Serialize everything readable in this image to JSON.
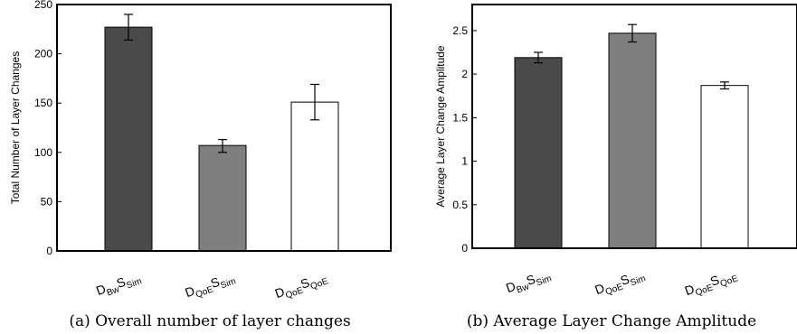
{
  "chart_data": [
    {
      "type": "bar",
      "caption": "(a) Overall number of layer changes",
      "ylabel": "Total Number of Layer Changes",
      "ylim": [
        0,
        250
      ],
      "yticks": [
        "0",
        "50",
        "100",
        "150",
        "200",
        "250"
      ],
      "categories": [
        {
          "base": "D",
          "sub1": "Bw",
          "mid": "S",
          "sub2": "Sim"
        },
        {
          "base": "D",
          "sub1": "QoE",
          "mid": "S",
          "sub2": "Sim"
        },
        {
          "base": "D",
          "sub1": "QoE",
          "mid": "S",
          "sub2": "QoE"
        }
      ],
      "values": [
        227,
        107,
        151
      ],
      "errors": [
        [
          214,
          240
        ],
        [
          100,
          113
        ],
        [
          133,
          169
        ]
      ],
      "bar_colors": [
        "#4a4a4a",
        "#7f7f7f",
        "#ffffff"
      ],
      "grid": false
    },
    {
      "type": "bar",
      "caption": "(b) Average Layer Change Amplitude",
      "ylabel": "Average Layer Change Amplitude",
      "ylim": [
        0,
        2.8
      ],
      "yticks": [
        "0",
        "0.5",
        "1",
        "1.5",
        "2",
        "2.5"
      ],
      "categories": [
        {
          "base": "D",
          "sub1": "Bw",
          "mid": "S",
          "sub2": "Sim"
        },
        {
          "base": "D",
          "sub1": "QoE",
          "mid": "S",
          "sub2": "Sim"
        },
        {
          "base": "D",
          "sub1": "QoE",
          "mid": "S",
          "sub2": "QoE"
        }
      ],
      "values": [
        2.19,
        2.47,
        1.87
      ],
      "errors": [
        [
          2.13,
          2.25
        ],
        [
          2.37,
          2.57
        ],
        [
          1.83,
          1.91
        ]
      ],
      "bar_colors": [
        "#4a4a4a",
        "#7f7f7f",
        "#ffffff"
      ],
      "grid": false
    }
  ]
}
